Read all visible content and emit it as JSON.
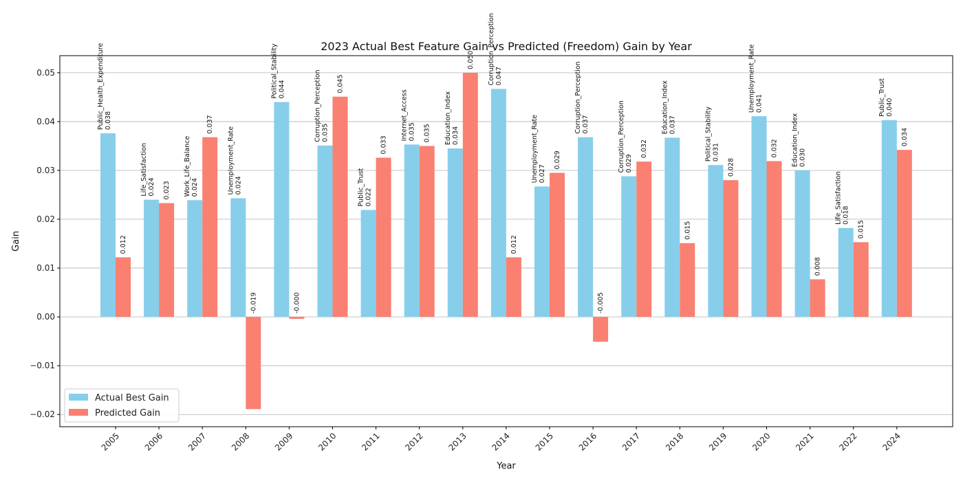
{
  "chart_data": {
    "type": "bar",
    "title": "2023 Actual Best Feature Gain vs Predicted (Freedom) Gain by Year",
    "xlabel": "Year",
    "ylabel": "Gain",
    "ylim": [
      -0.0225,
      0.0535
    ],
    "yticks": [
      -0.02,
      -0.01,
      0.0,
      0.01,
      0.02,
      0.03,
      0.04,
      0.05
    ],
    "ytick_labels": [
      "−0.02",
      "−0.01",
      "0.00",
      "0.01",
      "0.02",
      "0.03",
      "0.04",
      "0.05"
    ],
    "grid": "y",
    "legend_position": "lower-left",
    "categories": [
      "2005",
      "2006",
      "2007",
      "2008",
      "2009",
      "2010",
      "2011",
      "2012",
      "2013",
      "2014",
      "2015",
      "2016",
      "2017",
      "2018",
      "2019",
      "2020",
      "2021",
      "2022",
      "2024"
    ],
    "series": [
      {
        "name": "Actual Best Gain",
        "color": "#87ceeb",
        "values": [
          0.0376,
          0.024,
          0.0239,
          0.0243,
          0.044,
          0.0351,
          0.0219,
          0.0353,
          0.0345,
          0.0467,
          0.0267,
          0.0368,
          0.0288,
          0.0367,
          0.0311,
          0.0411,
          0.03,
          0.0182,
          0.0403
        ],
        "value_labels": [
          "0.038",
          "0.024",
          "0.024",
          "0.024",
          "0.044",
          "0.035",
          "0.022",
          "0.035",
          "0.034",
          "0.047",
          "0.027",
          "0.037",
          "0.029",
          "0.037",
          "0.031",
          "0.041",
          "0.030",
          "0.018",
          "0.040"
        ],
        "feature_labels": [
          "Public_Health_Expenditure",
          "Life_Satisfaction",
          "Work_Life_Balance",
          "Unemployment_Rate",
          "Political_Stability",
          "Corruption_Perception",
          "Public_Trust",
          "Internet_Access",
          "Education_Index",
          "Corruption_Perception",
          "Unemployment_Rate",
          "Corruption_Perception",
          "Corruption_Perception",
          "Education_Index",
          "Political_Stability",
          "Unemployment_Rate",
          "Education_Index",
          "Life_Satisfaction",
          "Public_Trust"
        ]
      },
      {
        "name": "Predicted Gain",
        "color": "#fa8072",
        "values": [
          0.0122,
          0.0233,
          0.0368,
          -0.0189,
          -0.0004,
          0.0451,
          0.0326,
          0.035,
          0.05,
          0.0122,
          0.0295,
          -0.0051,
          0.0318,
          0.0151,
          0.028,
          0.0319,
          0.0077,
          0.0153,
          0.0342
        ],
        "value_labels": [
          "0.012",
          "0.023",
          "0.037",
          "-0.019",
          "-0.000",
          "0.045",
          "0.033",
          "0.035",
          "0.050",
          "0.012",
          "0.029",
          "-0.005",
          "0.032",
          "0.015",
          "0.028",
          "0.032",
          "0.008",
          "0.015",
          "0.034"
        ]
      }
    ]
  }
}
